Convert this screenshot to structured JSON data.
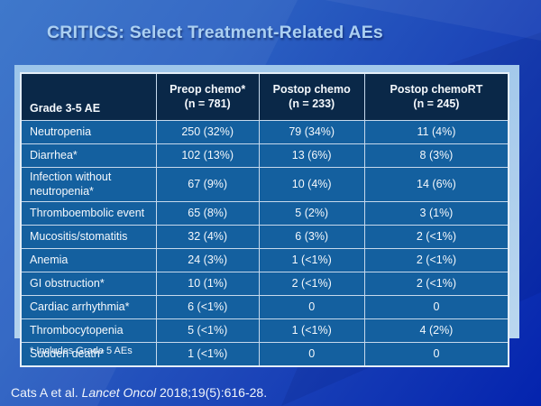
{
  "slide": {
    "title": "CRITICS: Select Treatment-Related AEs",
    "footnote": "* Includes Grade 5 AEs",
    "citation": {
      "prefix": "Cats A et al. ",
      "journal": "Lancet Oncol",
      "suffix": " 2018;19(5):616-28."
    }
  },
  "table": {
    "header": {
      "row_label": "Grade 3-5 AE",
      "columns": [
        {
          "line1": "Preop chemo*",
          "line2": "(n = 781)"
        },
        {
          "line1": "Postop chemo",
          "line2": "(n = 233)"
        },
        {
          "line1": "Postop chemoRT",
          "line2": "(n = 245)"
        }
      ]
    },
    "rows": [
      {
        "label": "Neutropenia",
        "values": [
          "250 (32%)",
          "79 (34%)",
          "11 (4%)"
        ]
      },
      {
        "label": "Diarrhea*",
        "values": [
          "102 (13%)",
          "13 (6%)",
          "8 (3%)"
        ]
      },
      {
        "label": "Infection without neutropenia*",
        "values": [
          "67 (9%)",
          "10 (4%)",
          "14 (6%)"
        ]
      },
      {
        "label": "Thromboembolic event",
        "values": [
          "65 (8%)",
          "5 (2%)",
          "3 (1%)"
        ]
      },
      {
        "label": "Mucositis/stomatitis",
        "values": [
          "32 (4%)",
          "6 (3%)",
          "2 (<1%)"
        ]
      },
      {
        "label": "Anemia",
        "values": [
          "24 (3%)",
          "1 (<1%)",
          "2 (<1%)"
        ]
      },
      {
        "label": "GI obstruction*",
        "values": [
          "10 (1%)",
          "2 (<1%)",
          "2 (<1%)"
        ]
      },
      {
        "label": "Cardiac arrhythmia*",
        "values": [
          "6 (<1%)",
          "0",
          "0"
        ]
      },
      {
        "label": "Thrombocytopenia",
        "values": [
          "5 (<1%)",
          "1 (<1%)",
          "4 (2%)"
        ]
      },
      {
        "label": "Sudden death*",
        "values": [
          "1 (<1%)",
          "0",
          "0"
        ]
      }
    ]
  },
  "colors": {
    "background_top": "#3571c9",
    "background_bottom": "#0423ae",
    "title_text": "#abd0f2",
    "panel": "#a9cbe8",
    "header_bg": "#0a2848",
    "row_bg": "#14609f",
    "cell_border": "#c6d9ec",
    "text": "#ffffff"
  }
}
